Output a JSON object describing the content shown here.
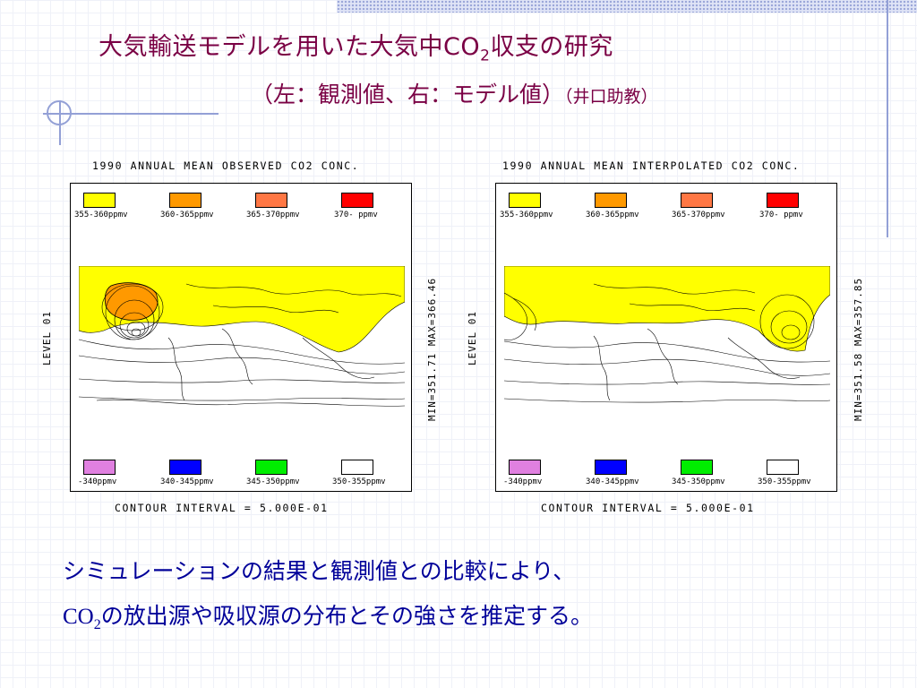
{
  "slide": {
    "title_line1_a": "大気輸送モデルを用いた大気中CO",
    "title_line1_sub": "2",
    "title_line1_b": "収支の研究",
    "title_line2": "（左：観測値、右：モデル値）",
    "title_line2_small": "（井口助教）"
  },
  "figures": [
    {
      "title": "1990 ANNUAL MEAN OBSERVED CO2 CONC.",
      "level_label": "LEVEL 01",
      "minmax": "MIN=351.71  MAX=366.46",
      "contour": "CONTOUR INTERVAL = 5.000E-01",
      "legend_top": [
        "355-360ppmv",
        "360-365ppmv",
        "365-370ppmv",
        "370-  ppmv"
      ],
      "legend_bottom": [
        "-340ppmv",
        "340-345ppmv",
        "345-350ppmv",
        "350-355ppmv"
      ]
    },
    {
      "title": "1990 ANNUAL MEAN INTERPOLATED CO2 CONC.",
      "level_label": "LEVEL 01",
      "minmax": "MIN=351.58  MAX=357.85",
      "contour": "CONTOUR INTERVAL = 5.000E-01",
      "legend_top": [
        "355-360ppmv",
        "360-365ppmv",
        "365-370ppmv",
        "370-  ppmv"
      ],
      "legend_bottom": [
        "-340ppmv",
        "340-345ppmv",
        "345-350ppmv",
        "350-355ppmv"
      ]
    }
  ],
  "legend_colors": {
    "top": [
      "#ffff00",
      "#ff9900",
      "#ff7744",
      "#ff0000"
    ],
    "bottom": [
      "#e080e0",
      "#0000ff",
      "#00ee00",
      "#ffffff"
    ]
  },
  "body": {
    "line1": "シミュレーションの結果と観測値との比較により、",
    "line2_co": "CO",
    "line2_sub": "2",
    "line2_rest": "の放出源や吸収源の分布とその強さを推定する。"
  },
  "colors": {
    "title": "#7a0044",
    "body": "#000099",
    "accent": "#93a0d6"
  }
}
